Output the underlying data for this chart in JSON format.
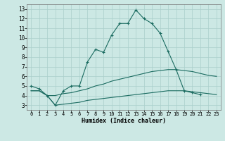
{
  "xlabel": "Humidex (Indice chaleur)",
  "background_color": "#cce8e4",
  "grid_color": "#aacfcb",
  "line_color": "#1a6b60",
  "hours": [
    0,
    1,
    2,
    3,
    4,
    5,
    6,
    7,
    8,
    9,
    10,
    11,
    12,
    13,
    14,
    15,
    16,
    17,
    18,
    19,
    20,
    21,
    22,
    23
  ],
  "max_curve": [
    5.0,
    4.7,
    4.0,
    3.0,
    4.5,
    5.0,
    5.0,
    7.5,
    8.8,
    8.5,
    10.3,
    11.5,
    11.5,
    12.9,
    12.0,
    11.5,
    10.5,
    8.6,
    6.7,
    4.5,
    4.3,
    4.1,
    null,
    null
  ],
  "mean_curve": [
    4.5,
    4.5,
    4.0,
    4.0,
    4.2,
    4.3,
    4.5,
    4.7,
    5.0,
    5.2,
    5.5,
    5.7,
    5.9,
    6.1,
    6.3,
    6.5,
    6.6,
    6.7,
    6.7,
    6.6,
    6.5,
    6.3,
    6.1,
    6.0
  ],
  "min_curve": [
    4.5,
    4.5,
    4.0,
    3.0,
    3.1,
    3.2,
    3.3,
    3.5,
    3.6,
    3.7,
    3.8,
    3.9,
    4.0,
    4.1,
    4.2,
    4.3,
    4.4,
    4.5,
    4.5,
    4.5,
    4.4,
    4.3,
    4.2,
    4.1
  ],
  "ylim": [
    2.5,
    13.5
  ],
  "xlim": [
    -0.5,
    23.5
  ],
  "yticks": [
    3,
    4,
    5,
    6,
    7,
    8,
    9,
    10,
    11,
    12,
    13
  ],
  "xticks": [
    0,
    1,
    2,
    3,
    4,
    5,
    6,
    7,
    8,
    9,
    10,
    11,
    12,
    13,
    14,
    15,
    16,
    17,
    18,
    19,
    20,
    21,
    22,
    23
  ]
}
